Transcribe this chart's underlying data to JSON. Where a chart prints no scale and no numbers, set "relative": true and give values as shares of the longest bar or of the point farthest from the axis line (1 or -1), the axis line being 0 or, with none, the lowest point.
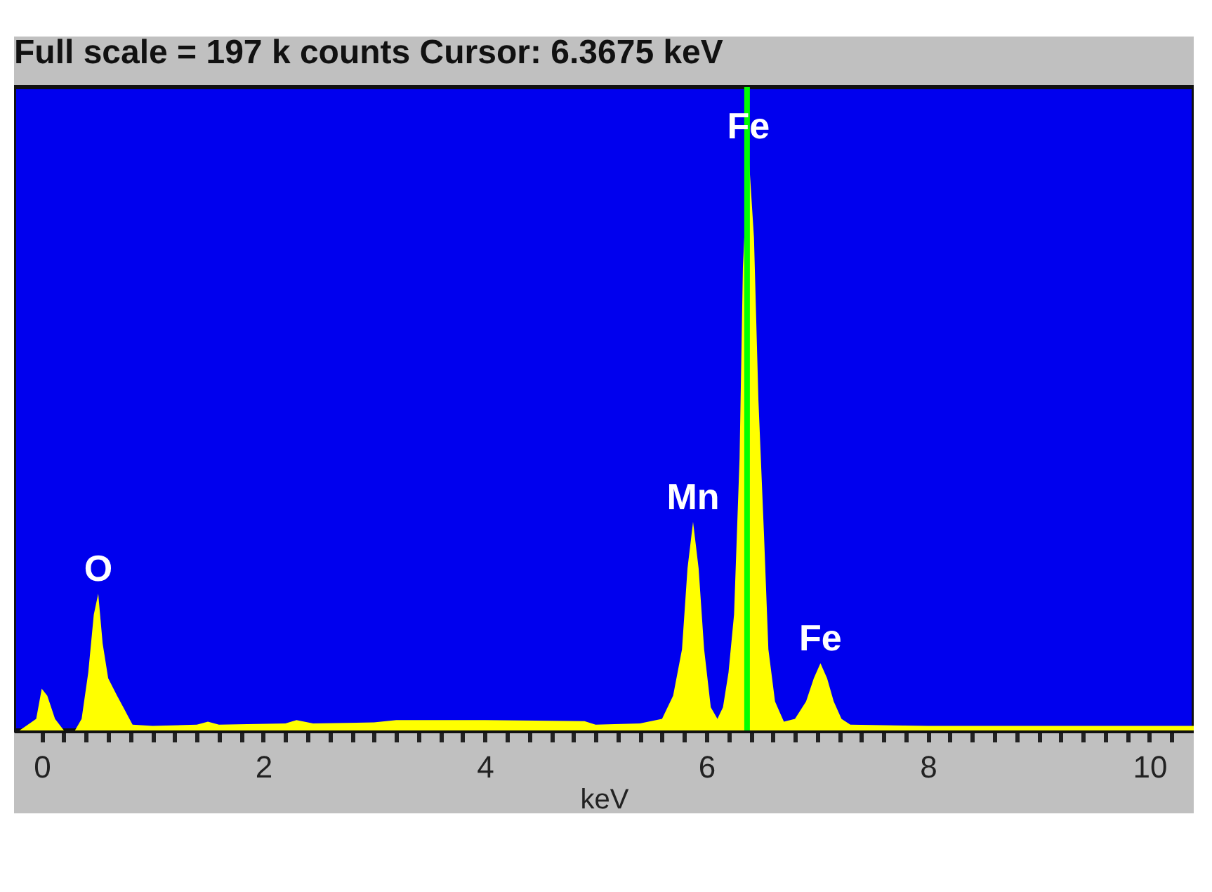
{
  "chart_data": {
    "type": "area",
    "title": "Full scale = 197 k counts   Cursor:  6.3675 keV",
    "xlabel": "keV",
    "relative": true,
    "xlim": [
      -0.25,
      10.4
    ],
    "xticks": [
      0,
      {
        "value": 0.2,
        "label": null
      },
      {
        "value": 0.4,
        "label": null
      },
      {
        "value": 0.6,
        "label": null
      },
      {
        "value": 0.8,
        "label": null
      },
      {
        "value": 1,
        "label": null
      },
      {
        "value": 1.2,
        "label": null
      },
      {
        "value": 1.4,
        "label": null
      },
      {
        "value": 1.6,
        "label": null
      },
      {
        "value": 1.8,
        "label": null
      },
      2,
      {
        "value": 2.2,
        "label": null
      },
      {
        "value": 2.4,
        "label": null
      },
      {
        "value": 2.6,
        "label": null
      },
      {
        "value": 2.8,
        "label": null
      },
      {
        "value": 3,
        "label": null
      },
      {
        "value": 3.2,
        "label": null
      },
      {
        "value": 3.4,
        "label": null
      },
      {
        "value": 3.6,
        "label": null
      },
      {
        "value": 3.8,
        "label": null
      },
      4,
      {
        "value": 4.2,
        "label": null
      },
      {
        "value": 4.4,
        "label": null
      },
      {
        "value": 4.6,
        "label": null
      },
      {
        "value": 4.8,
        "label": null
      },
      {
        "value": 5,
        "label": null
      },
      {
        "value": 5.2,
        "label": null
      },
      {
        "value": 5.4,
        "label": null
      },
      {
        "value": 5.6,
        "label": null
      },
      {
        "value": 5.8,
        "label": null
      },
      6,
      {
        "value": 6.2,
        "label": null
      },
      {
        "value": 6.4,
        "label": null
      },
      {
        "value": 6.6,
        "label": null
      },
      {
        "value": 6.8,
        "label": null
      },
      {
        "value": 7,
        "label": null
      },
      {
        "value": 7.2,
        "label": null
      },
      {
        "value": 7.4,
        "label": null
      },
      {
        "value": 7.6,
        "label": null
      },
      {
        "value": 7.8,
        "label": null
      },
      8,
      {
        "value": 8.2,
        "label": null
      },
      {
        "value": 8.4,
        "label": null
      },
      {
        "value": 8.6,
        "label": null
      },
      {
        "value": 8.8,
        "label": null
      },
      {
        "value": 9,
        "label": null
      },
      {
        "value": 9.2,
        "label": null
      },
      {
        "value": 9.4,
        "label": null
      },
      {
        "value": 9.6,
        "label": null
      },
      {
        "value": 9.8,
        "label": null
      },
      10,
      {
        "value": 10.2,
        "label": null
      }
    ],
    "x": [
      -0.2,
      -0.05,
      0,
      0.05,
      0.12,
      0.2,
      0.3,
      0.36,
      0.42,
      0.47,
      0.51,
      0.55,
      0.6,
      0.68,
      0.75,
      0.82,
      1.0,
      1.4,
      1.5,
      1.6,
      2.2,
      2.3,
      2.45,
      3.0,
      3.2,
      4.0,
      4.9,
      5.0,
      5.4,
      5.6,
      5.7,
      5.78,
      5.83,
      5.88,
      5.93,
      5.98,
      6.04,
      6.1,
      6.15,
      6.2,
      6.25,
      6.3,
      6.33,
      6.38,
      6.43,
      6.47,
      6.52,
      6.56,
      6.62,
      6.7,
      6.8,
      6.9,
      6.97,
      7.03,
      7.09,
      7.15,
      7.22,
      7.3,
      8,
      9,
      10,
      10.4
    ],
    "series": [
      {
        "color": "#ffff00",
        "values": [
          0.0,
          0.02,
          0.072,
          0.06,
          0.02,
          0.0,
          0.0,
          0.02,
          0.1,
          0.2,
          0.236,
          0.15,
          0.09,
          0.06,
          0.035,
          0.01,
          0.008,
          0.01,
          0.015,
          0.01,
          0.012,
          0.018,
          0.012,
          0.014,
          0.018,
          0.018,
          0.016,
          0.01,
          0.012,
          0.02,
          0.06,
          0.14,
          0.28,
          0.36,
          0.28,
          0.14,
          0.04,
          0.02,
          0.04,
          0.1,
          0.2,
          0.47,
          0.8,
          1.0,
          0.85,
          0.57,
          0.34,
          0.14,
          0.05,
          0.015,
          0.02,
          0.05,
          0.09,
          0.116,
          0.09,
          0.05,
          0.02,
          0.01,
          0.008,
          0.008,
          0.008,
          0.008
        ]
      }
    ],
    "ref_lines": [
      {
        "axis": "x",
        "value": 6.3675,
        "color": "#00ff00"
      }
    ],
    "annotations": [
      {
        "text": "O",
        "x": 0.51,
        "y": 0.236
      },
      {
        "text": "Mn",
        "x": 5.88,
        "y": 0.36
      },
      {
        "text": "Fe",
        "x": 6.38,
        "y": 1.0
      },
      {
        "text": "Fe",
        "x": 7.03,
        "y": 0.116
      }
    ]
  }
}
